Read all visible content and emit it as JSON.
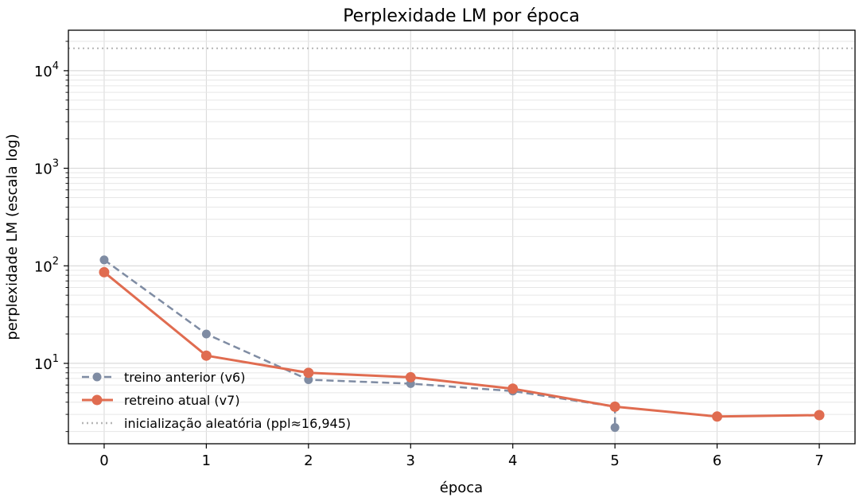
{
  "chart_data": {
    "type": "line",
    "title": "Perplexidade LM por época",
    "xlabel": "época",
    "ylabel": "perplexidade LM (escala log)",
    "yscale": "log",
    "xlim": [
      -0.35,
      7.35
    ],
    "ylim": [
      1.5,
      26000
    ],
    "x_ticks": [
      0,
      1,
      2,
      3,
      4,
      5,
      6,
      7
    ],
    "x_tick_labels": [
      "0",
      "1",
      "2",
      "3",
      "4",
      "5",
      "6",
      "7"
    ],
    "y_ticks": [
      10,
      100,
      1000,
      10000
    ],
    "y_tick_base": "10",
    "y_tick_exponents": [
      "1",
      "2",
      "3",
      "4"
    ],
    "grid": true,
    "legend_position": "lower-left",
    "series": [
      {
        "name": "treino anterior (v6)",
        "color": "#7f8ca3",
        "style": "dashed",
        "x": [
          0,
          1,
          2,
          3,
          4,
          5,
          5
        ],
        "y": [
          115,
          20,
          6.8,
          6.2,
          5.2,
          3.6,
          2.2
        ]
      },
      {
        "name": "retreino atual (v7)",
        "color": "#e06c50",
        "style": "solid",
        "x": [
          0,
          1,
          2,
          3,
          4,
          5,
          6,
          7
        ],
        "y": [
          86,
          12,
          8.0,
          7.2,
          5.5,
          3.6,
          2.85,
          2.95
        ]
      }
    ],
    "reference_line": {
      "name": "inicialização aleatória (ppl≈16,945)",
      "value": 16945,
      "color": "#b5b5b5",
      "style": "dotted"
    }
  }
}
